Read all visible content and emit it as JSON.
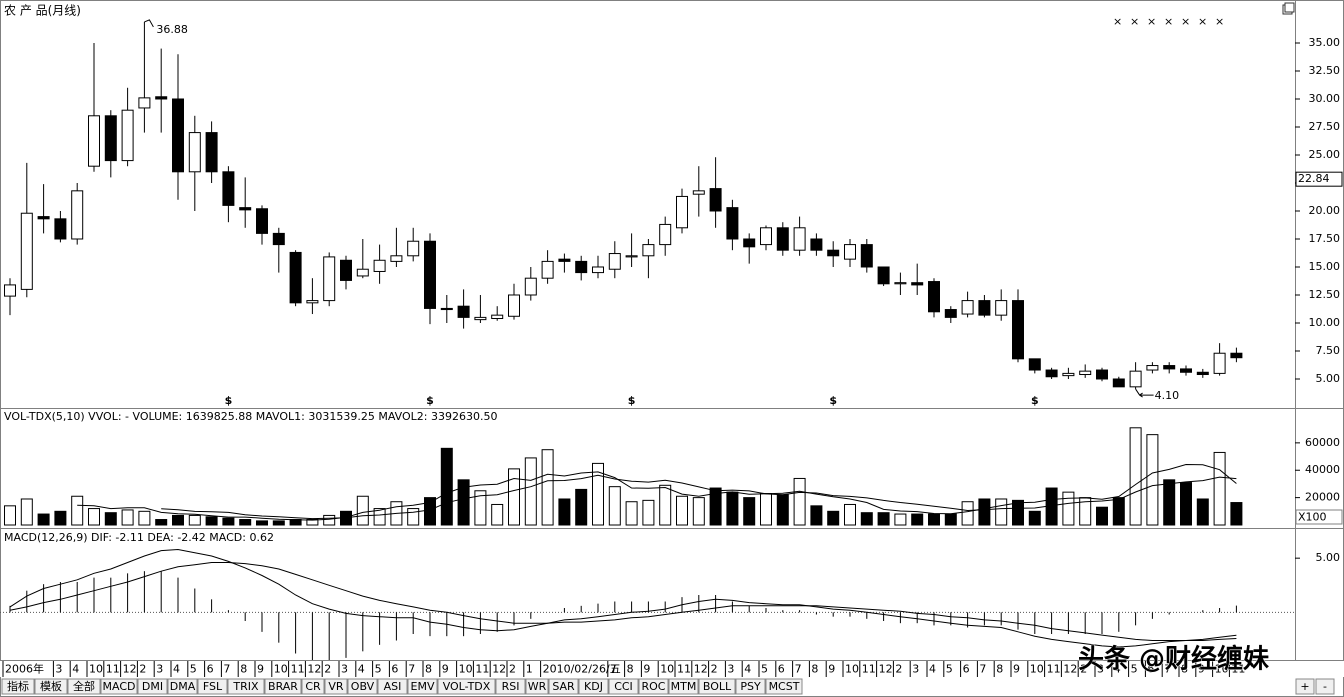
{
  "chart_data": [
    {
      "type": "candlestick",
      "title": "农 产 品(月线)",
      "categories": [
        "2006年",
        null,
        null,
        "3",
        "4",
        "10",
        "11",
        "12",
        "2",
        "3",
        "4",
        "5",
        "6",
        "7",
        "8",
        "9",
        "10",
        "11",
        "12",
        "2",
        "3",
        "4",
        "5",
        "6",
        "7",
        "8",
        "9",
        "10",
        "11",
        "12",
        "2",
        "1",
        "2010/02/26/五",
        null,
        null,
        null,
        "7",
        "8",
        "9",
        "10",
        "11",
        "12",
        "2",
        "3",
        "4",
        "5",
        "6",
        "7",
        "8",
        "9",
        "10",
        "11",
        "12",
        "2",
        "3",
        "4",
        "5",
        "6",
        "7",
        "8",
        "9",
        "10",
        "11",
        "12",
        "2",
        "3",
        "4",
        "5",
        "6",
        "7",
        "8",
        "9",
        "10",
        "11"
      ],
      "open": [
        12.4,
        13,
        19.5,
        19.3,
        17.5,
        24,
        28.5,
        24.5,
        29.2,
        30.2,
        30,
        23.5,
        27,
        23.5,
        20.3,
        20.2,
        18,
        16.3,
        11.8,
        12,
        15.6,
        14.2,
        14.6,
        15.5,
        16,
        17.3,
        11.3,
        11.5,
        10.3,
        10.4,
        10.6,
        12.5,
        14,
        15.7,
        15.5,
        14.5,
        14.8,
        15.9,
        16,
        17,
        18.5,
        21.5,
        22,
        20.3,
        17.5,
        17,
        18.5,
        16.5,
        17.5,
        16.5,
        15.7,
        17,
        15,
        13.5,
        13.6,
        13.7,
        11.2,
        10.8,
        12,
        10.7,
        12,
        6.8,
        5.8,
        5.3,
        5.4,
        5.8,
        5,
        4.3,
        5.8,
        6.2,
        5.9,
        5.6,
        5.5,
        7.3
      ],
      "high": [
        14,
        24.3,
        22.4,
        20,
        22.5,
        35,
        29,
        31,
        36.88,
        34.5,
        34,
        28.5,
        28,
        24,
        23,
        20.5,
        18.5,
        16.5,
        14,
        16.3,
        16,
        17.5,
        17,
        18.5,
        18.5,
        18,
        12.5,
        13,
        12.5,
        11.5,
        13.5,
        15,
        16.5,
        16.2,
        16,
        16,
        17.3,
        18,
        17.5,
        19.5,
        22,
        24,
        24.8,
        21,
        18,
        18.7,
        19,
        19.5,
        18,
        17.3,
        17.5,
        17.5,
        15,
        14.5,
        15.3,
        14,
        11.5,
        12.8,
        12.5,
        13,
        13,
        6.8,
        6,
        6,
        6.3,
        6,
        5.2,
        6.5,
        6.5,
        6.5,
        6.2,
        5.9,
        8.2,
        7.8
      ],
      "low": [
        10.7,
        12.3,
        18,
        17.2,
        17,
        23.5,
        23,
        24,
        27,
        27,
        21,
        20,
        22.5,
        19,
        18.5,
        17,
        14.5,
        11.5,
        10.8,
        11.5,
        13,
        14,
        13.5,
        15,
        15.5,
        9.9,
        10,
        9.5,
        10,
        10.2,
        10.3,
        12,
        13.5,
        14.5,
        13.8,
        14,
        14,
        15,
        14,
        16,
        18,
        19.5,
        18.5,
        16.5,
        15.3,
        16.5,
        16,
        16,
        16,
        15,
        15,
        14.5,
        13.3,
        12.5,
        12.5,
        10.5,
        10,
        10.5,
        10.5,
        10.2,
        6.5,
        5.5,
        5,
        5,
        5.1,
        4.8,
        4.3,
        4.1,
        5.5,
        5.5,
        5.3,
        5.1,
        5.3,
        6.5
      ],
      "close": [
        13.4,
        19.8,
        19.3,
        17.5,
        21.8,
        28.5,
        24.5,
        29,
        30.1,
        30,
        23.5,
        27,
        23.5,
        20.5,
        20.1,
        18,
        17,
        11.8,
        12,
        15.9,
        13.8,
        14.8,
        15.6,
        16,
        17.3,
        11.3,
        11.2,
        10.5,
        10.5,
        10.7,
        12.5,
        14,
        15.5,
        15.5,
        14.5,
        15,
        16.2,
        16,
        17,
        18.8,
        21.3,
        21.8,
        20,
        17.5,
        16.8,
        18.5,
        16.5,
        18.5,
        16.5,
        16,
        17,
        15,
        13.5,
        13.6,
        13.4,
        11,
        10.5,
        12,
        10.7,
        12,
        6.8,
        5.8,
        5.2,
        5.5,
        5.7,
        5,
        4.3,
        5.7,
        6.2,
        5.9,
        5.6,
        5.4,
        7.3,
        6.9
      ],
      "color": "#000000",
      "ylim": [
        2.41,
        38.66
      ],
      "yticks": [
        {
          "value": 5,
          "label": "5.00"
        },
        {
          "value": 7.5,
          "label": "7.50"
        },
        {
          "value": 10,
          "label": "10.00"
        },
        {
          "value": 12.5,
          "label": "12.50"
        },
        {
          "value": 15,
          "label": "15.00"
        },
        {
          "value": 17.5,
          "label": "17.50"
        },
        {
          "value": 20,
          "label": "20.00"
        },
        {
          "value": 22.5,
          "label": "22.50"
        },
        {
          "value": 25,
          "label": "25.00"
        },
        {
          "value": 27.5,
          "label": "27.50"
        },
        {
          "value": 30,
          "label": "30.00"
        },
        {
          "value": 32.5,
          "label": "32.50"
        },
        {
          "value": 35,
          "label": "35.00"
        }
      ],
      "annotations": [
        {
          "value": 36.88,
          "label": "36.88"
        },
        {
          "value": 4.1,
          "label": "4.10"
        }
      ],
      "last_price": {
        "value": 22.84,
        "label": "22.84"
      },
      "event_marks": [
        "$",
        "$",
        "$",
        "$",
        "$"
      ],
      "event_color": "#c00000"
    },
    {
      "type": "volume",
      "title": "VOL-TDX(5,10)  VVOL: -    VOLUME: 1639825.88  MAVOL1: 3031539.25  MAVOL2: 3392630.50",
      "values": [
        14000,
        19000,
        8000,
        10000,
        21000,
        12000,
        9000,
        11000,
        10000,
        4000,
        7000,
        7000,
        6000,
        5000,
        4000,
        3000,
        3000,
        4000,
        4000,
        7000,
        10000,
        21000,
        12000,
        17000,
        12000,
        20000,
        56000,
        33000,
        25000,
        15000,
        41000,
        49000,
        55000,
        19000,
        26000,
        45000,
        28000,
        17000,
        18000,
        29000,
        21000,
        20000,
        27000,
        24000,
        20000,
        23000,
        22000,
        34000,
        14000,
        10000,
        15000,
        9000,
        9000,
        8000,
        8000,
        8000,
        8000,
        17000,
        19000,
        19000,
        18000,
        10000,
        27000,
        24000,
        20000,
        13000,
        20000,
        71000,
        66000,
        33000,
        31000,
        19000,
        53000,
        16398
      ],
      "lines": [
        {
          "color": "#000000",
          "values": [
            null,
            null,
            null,
            null,
            14400,
            14000,
            12000,
            12600,
            12600,
            9200,
            8200,
            7800,
            6800,
            5800,
            5800,
            5000,
            4200,
            3800,
            3600,
            4200,
            5600,
            9200,
            10800,
            13400,
            14400,
            16400,
            23400,
            27600,
            29200,
            29800,
            34000,
            32600,
            37000,
            35800,
            38000,
            38800,
            34600,
            27000,
            26800,
            27400,
            22600,
            21000,
            23000,
            24200,
            22400,
            22800,
            23200,
            24600,
            22600,
            20600,
            19000,
            16400,
            11400,
            10200,
            9800,
            8400,
            8200,
            9800,
            12000,
            14200,
            16200,
            16600,
            18600,
            19600,
            19800,
            18800,
            20800,
            29600,
            38000,
            40600,
            44200,
            44000,
            40400,
            30315
          ]
        },
        {
          "color": "#000000",
          "values": [
            null,
            null,
            null,
            null,
            null,
            null,
            null,
            null,
            null,
            11800,
            11100,
            9900,
            9700,
            9200,
            7500,
            6600,
            6000,
            5300,
            4700,
            5000,
            5300,
            6700,
            7300,
            8500,
            9300,
            11000,
            16300,
            19200,
            21300,
            22100,
            25200,
            28000,
            32300,
            32500,
            33900,
            36400,
            33600,
            32000,
            31300,
            32700,
            30700,
            27800,
            25000,
            25500,
            24900,
            22700,
            22100,
            23800,
            23400,
            21500,
            20900,
            19800,
            18000,
            16400,
            15200,
            13700,
            12300,
            10600,
            11100,
            12000,
            12300,
            12400,
            14200,
            15800,
            17000,
            17500,
            18700,
            24100,
            28800,
            30200,
            31500,
            32400,
            35000,
            33926
          ]
        }
      ],
      "ylim": [
        0,
        84000
      ],
      "yticks": [
        20000,
        40000,
        60000
      ],
      "unit_label": "X100"
    },
    {
      "type": "macd",
      "title": "MACD(12,26,9)  DIF: -2.11  DEA: -2.42  MACD: 0.62",
      "dif": [
        0.5,
        1.5,
        2.2,
        2.6,
        3.0,
        3.6,
        4.0,
        4.6,
        5.2,
        5.7,
        5.8,
        5.5,
        5.2,
        4.7,
        4.1,
        3.4,
        2.6,
        1.6,
        0.8,
        0.3,
        -0.1,
        -0.3,
        -0.4,
        -0.5,
        -0.5,
        -0.9,
        -1.1,
        -1.4,
        -1.6,
        -1.7,
        -1.6,
        -1.3,
        -1.0,
        -0.7,
        -0.6,
        -0.4,
        -0.2,
        0.0,
        0.1,
        0.3,
        0.7,
        1.0,
        1.2,
        1.1,
        0.9,
        0.8,
        0.7,
        0.7,
        0.5,
        0.3,
        0.2,
        0.0,
        -0.2,
        -0.4,
        -0.6,
        -0.8,
        -1.0,
        -1.2,
        -1.3,
        -1.4,
        -1.8,
        -2.2,
        -2.5,
        -2.7,
        -2.9,
        -3.1,
        -3.2,
        -3.1,
        -2.9,
        -2.7,
        -2.6,
        -2.5,
        -2.3,
        -2.11
      ],
      "dea": [
        0.2,
        0.5,
        0.9,
        1.2,
        1.6,
        2.0,
        2.4,
        2.8,
        3.3,
        3.8,
        4.2,
        4.4,
        4.6,
        4.6,
        4.5,
        4.3,
        4.0,
        3.5,
        3.0,
        2.5,
        2.0,
        1.5,
        1.1,
        0.8,
        0.5,
        0.2,
        0.0,
        -0.3,
        -0.6,
        -0.8,
        -1.0,
        -1.0,
        -1.0,
        -0.9,
        -0.9,
        -0.8,
        -0.7,
        -0.5,
        -0.4,
        -0.2,
        0.0,
        0.2,
        0.4,
        0.6,
        0.6,
        0.6,
        0.6,
        0.6,
        0.6,
        0.5,
        0.4,
        0.3,
        0.2,
        0.1,
        -0.1,
        -0.2,
        -0.4,
        -0.5,
        -0.7,
        -0.8,
        -1.0,
        -1.2,
        -1.5,
        -1.7,
        -1.9,
        -2.1,
        -2.3,
        -2.5,
        -2.6,
        -2.6,
        -2.6,
        -2.6,
        -2.5,
        -2.42
      ],
      "macd": [
        0.6,
        2.0,
        2.6,
        2.8,
        2.8,
        3.2,
        3.2,
        3.6,
        3.8,
        3.8,
        3.2,
        2.2,
        1.2,
        0.2,
        -0.8,
        -1.8,
        -2.8,
        -3.8,
        -4.4,
        -4.4,
        -4.2,
        -3.6,
        -3.0,
        -2.6,
        -2.0,
        -2.2,
        -2.2,
        -2.2,
        -2.0,
        -1.8,
        -1.2,
        -0.6,
        0.0,
        0.4,
        0.6,
        0.8,
        1.0,
        1.0,
        1.0,
        1.0,
        1.4,
        1.6,
        1.6,
        1.0,
        0.6,
        0.4,
        0.2,
        0.2,
        -0.2,
        -0.4,
        -0.4,
        -0.6,
        -0.8,
        -1.0,
        -1.0,
        -1.2,
        -1.2,
        -1.4,
        -1.2,
        -1.2,
        -1.6,
        -2.0,
        -2.0,
        -2.0,
        -2.0,
        -2.0,
        -1.8,
        -1.2,
        -0.6,
        -0.2,
        0.0,
        0.2,
        0.4,
        0.62
      ],
      "color": "#000000",
      "ylim": [
        -4.4,
        7.6
      ],
      "yticks": [
        {
          "value": 5,
          "label": "5.00"
        }
      ]
    }
  ],
  "tabs": [
    "指标",
    "模板",
    "全部",
    "MACD",
    "DMI",
    "DMA",
    "FSL",
    "TRIX",
    "BRAR",
    "CR",
    "VR",
    "OBV",
    "ASI",
    "EMV",
    "VOL-TDX",
    "RSI",
    "WR",
    "SAR",
    "KDJ",
    "CCI",
    "ROC",
    "MTM",
    "BOLL",
    "PSY",
    "MCST"
  ],
  "active_tab": 3,
  "zoom_buttons": [
    "+",
    "-"
  ],
  "watermark": "头条 @财经缠妹"
}
